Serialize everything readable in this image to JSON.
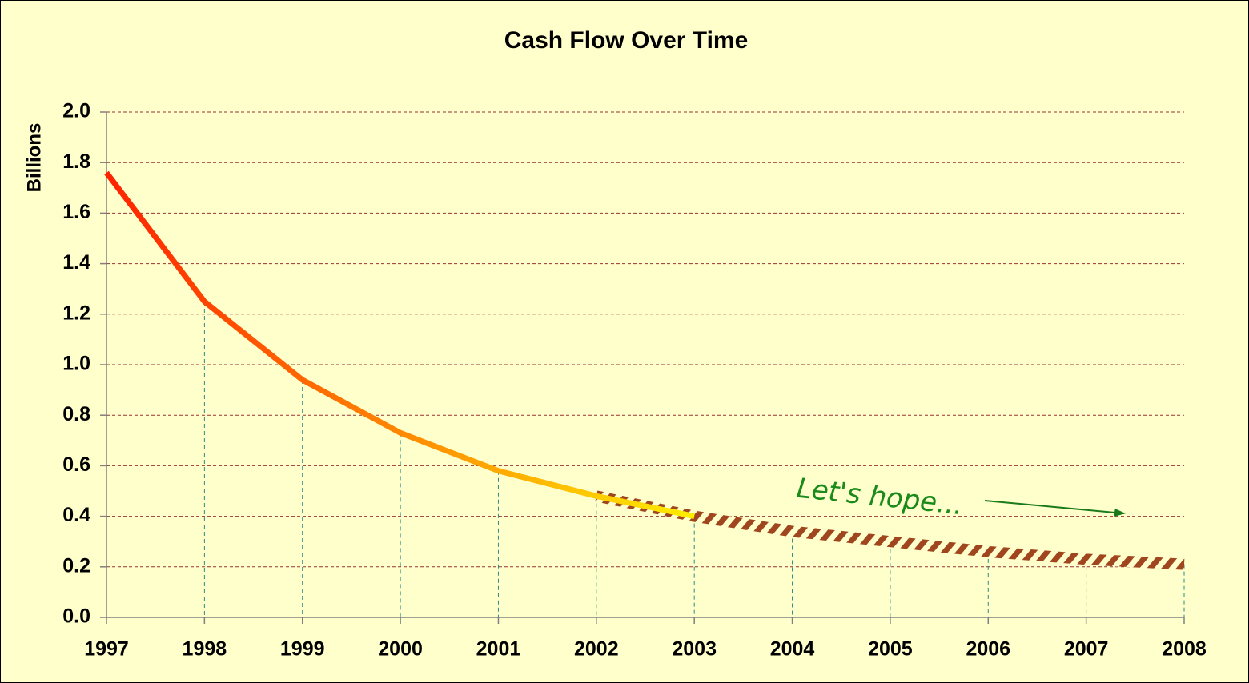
{
  "chart_data": {
    "type": "line",
    "title": "Cash Flow Over Time",
    "y_label": "Billions",
    "annotation": "Let's hope...",
    "x": [
      1997,
      1998,
      1999,
      2000,
      2001,
      2002,
      2003,
      2004,
      2005,
      2006,
      2007,
      2008
    ],
    "values": [
      1.76,
      1.25,
      0.94,
      0.73,
      0.58,
      0.48,
      0.4,
      null,
      null,
      null,
      null,
      null
    ],
    "projection": [
      null,
      null,
      null,
      null,
      null,
      0.48,
      0.4,
      0.34,
      0.3,
      0.26,
      0.23,
      0.21
    ],
    "colors": [
      "#ff2200",
      "#ff8800",
      "#ffee00"
    ],
    "projection_colors": [
      "#a0461e",
      "#ffffcc"
    ],
    "background": "#ffffcc",
    "xlim": [
      1997,
      2008
    ],
    "xticks": [
      1997,
      1998,
      1999,
      2000,
      2001,
      2002,
      2003,
      2004,
      2005,
      2006,
      2007,
      2008
    ],
    "ylim": [
      0,
      2
    ],
    "yticks": [
      {
        "value": 0,
        "label": "0.0"
      },
      0.2,
      0.4,
      0.6,
      0.8,
      {
        "value": 1,
        "label": "1.0"
      },
      1.2,
      1.4,
      1.6,
      1.8,
      {
        "value": 2,
        "label": "2.0"
      }
    ],
    "grid": true
  }
}
